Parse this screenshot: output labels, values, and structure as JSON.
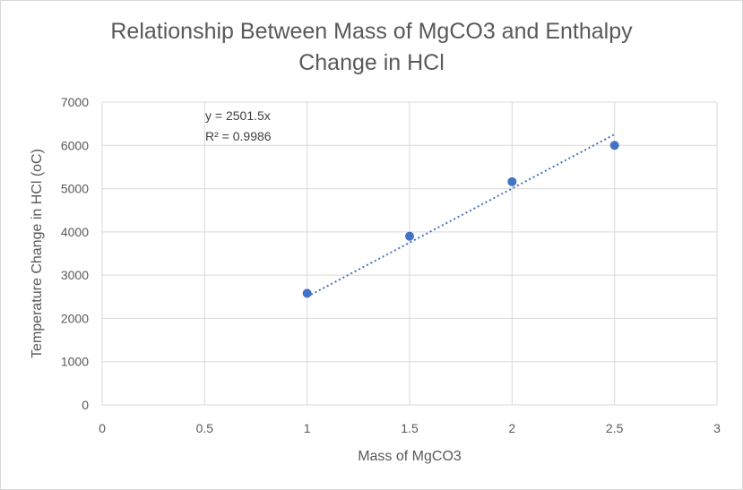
{
  "chart_data": {
    "type": "scatter",
    "title_lines": [
      "Relationship Between Mass of MgCO3 and Enthalpy",
      "Change in HCl"
    ],
    "xlabel": "Mass of MgCO3",
    "ylabel": "Temperature Change in HCl (oC)",
    "xlim": [
      0,
      3
    ],
    "ylim": [
      0,
      7000
    ],
    "x_ticks": [
      0,
      0.5,
      1,
      1.5,
      2,
      2.5,
      3
    ],
    "x_tick_labels": [
      "0",
      "0.5",
      "1",
      "1.5",
      "2",
      "2.5",
      "3"
    ],
    "y_ticks": [
      0,
      1000,
      2000,
      3000,
      4000,
      5000,
      6000,
      7000
    ],
    "y_tick_labels": [
      "0",
      "1000",
      "2000",
      "3000",
      "4000",
      "5000",
      "6000",
      "7000"
    ],
    "grid": true,
    "legend": "none",
    "series": [
      {
        "points": [
          {
            "x": 1,
            "y": 2580
          },
          {
            "x": 1.5,
            "y": 3900
          },
          {
            "x": 2,
            "y": 5160
          },
          {
            "x": 2.5,
            "y": 6000
          }
        ],
        "color": "#4472c4"
      }
    ],
    "trendline": {
      "type": "linear",
      "slope": 2501.5,
      "intercept": 0,
      "x_range": [
        1,
        2.5
      ],
      "style": "dotted",
      "color": "#4472c4",
      "equation_label": "y = 2501.5x",
      "r2_label": "R² = 0.9986"
    }
  }
}
